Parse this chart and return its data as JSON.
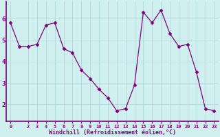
{
  "x": [
    0,
    1,
    2,
    3,
    4,
    5,
    6,
    7,
    8,
    9,
    10,
    11,
    12,
    13,
    14,
    15,
    16,
    17,
    18,
    19,
    20,
    21,
    22,
    23
  ],
  "y": [
    5.8,
    4.7,
    4.7,
    4.8,
    5.7,
    5.8,
    4.6,
    4.4,
    3.6,
    3.2,
    2.7,
    2.3,
    1.7,
    1.8,
    2.9,
    6.3,
    5.8,
    6.4,
    5.3,
    4.7,
    4.8,
    3.5,
    1.8,
    1.7
  ],
  "line_color": "#800080",
  "marker": "D",
  "marker_size": 2.5,
  "bg_color": "#cff0ee",
  "grid_color": "#b0d8d8",
  "xlabel": "Windchill (Refroidissement éolien,°C)",
  "xlabel_color": "#800080",
  "ylim": [
    1.2,
    6.8
  ],
  "xlim": [
    -0.5,
    23.5
  ],
  "yticks": [
    2,
    3,
    4,
    5,
    6
  ],
  "xticks": [
    0,
    2,
    3,
    4,
    5,
    6,
    7,
    8,
    9,
    10,
    11,
    12,
    13,
    14,
    15,
    16,
    17,
    18,
    19,
    20,
    21,
    22,
    23
  ],
  "tick_color": "#800080",
  "axis_color": "#800080",
  "spine_color": "#800080"
}
